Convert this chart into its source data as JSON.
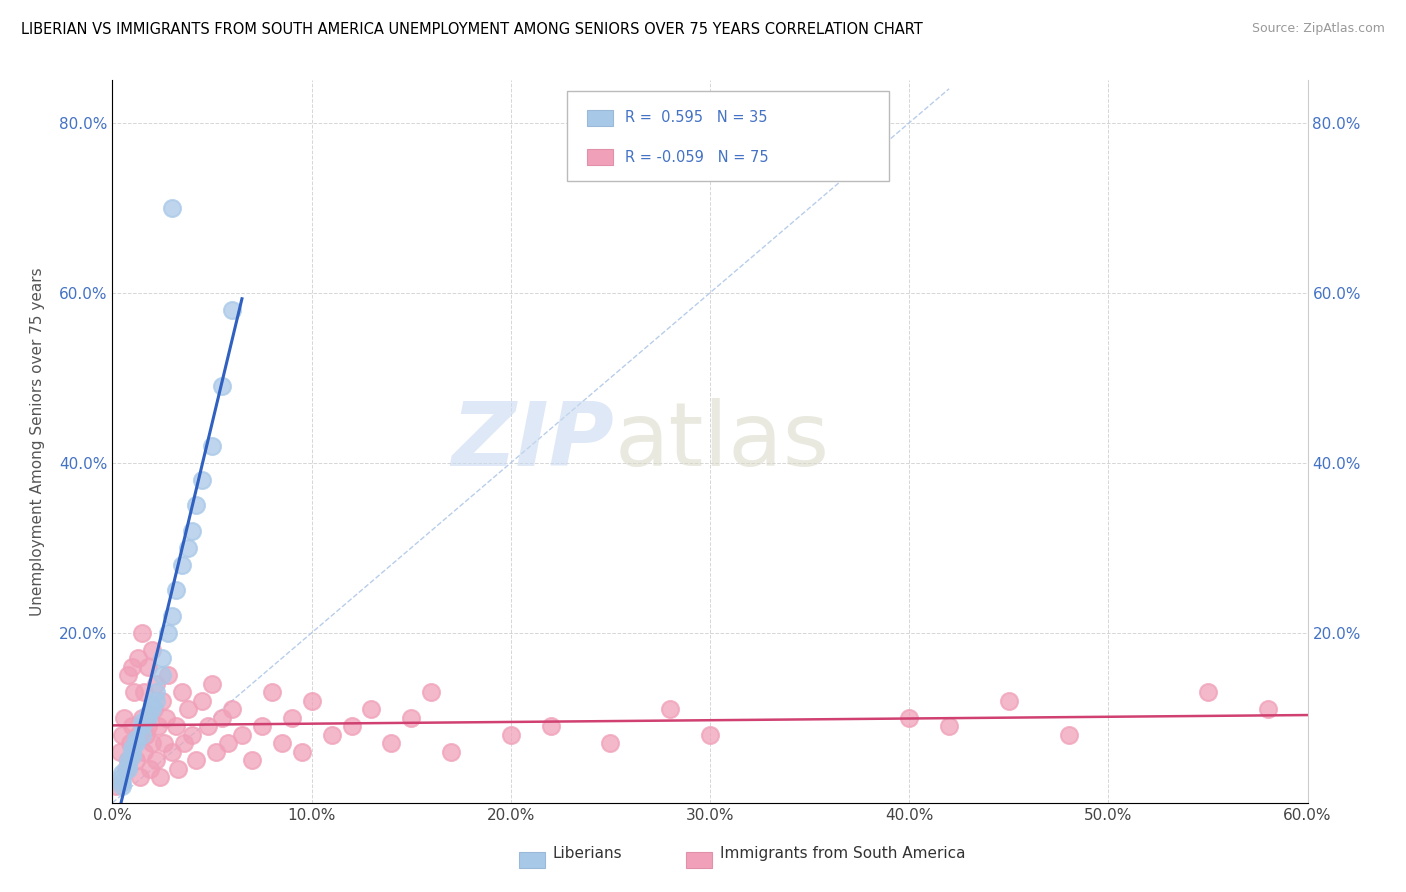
{
  "title": "LIBERIAN VS IMMIGRANTS FROM SOUTH AMERICA UNEMPLOYMENT AMONG SENIORS OVER 75 YEARS CORRELATION CHART",
  "source": "Source: ZipAtlas.com",
  "ylabel": "Unemployment Among Seniors over 75 years",
  "xlim": [
    0.0,
    0.6
  ],
  "ylim": [
    0.0,
    0.85
  ],
  "x_ticks": [
    0.0,
    0.1,
    0.2,
    0.3,
    0.4,
    0.5,
    0.6
  ],
  "y_ticks": [
    0.0,
    0.2,
    0.4,
    0.6,
    0.8
  ],
  "r_liberian": 0.595,
  "n_liberian": 35,
  "r_sa": -0.059,
  "n_sa": 75,
  "liberian_color": "#a8c8e8",
  "sa_color": "#f0a0b8",
  "liberian_line_color": "#3060c0",
  "sa_line_color": "#d04070",
  "dashed_line_color": "#b0c8e8",
  "legend_label_liberian": "Liberians",
  "legend_label_sa": "Immigrants from South America",
  "lib_x": [
    0.005,
    0.005,
    0.005,
    0.005,
    0.008,
    0.008,
    0.008,
    0.01,
    0.01,
    0.01,
    0.012,
    0.012,
    0.015,
    0.015,
    0.015,
    0.018,
    0.018,
    0.02,
    0.02,
    0.022,
    0.022,
    0.025,
    0.025,
    0.028,
    0.03,
    0.032,
    0.035,
    0.038,
    0.04,
    0.042,
    0.045,
    0.05,
    0.055,
    0.06,
    0.03
  ],
  "lib_y": [
    0.02,
    0.025,
    0.03,
    0.035,
    0.04,
    0.045,
    0.05,
    0.055,
    0.06,
    0.065,
    0.07,
    0.075,
    0.08,
    0.09,
    0.095,
    0.1,
    0.105,
    0.11,
    0.115,
    0.12,
    0.13,
    0.15,
    0.17,
    0.2,
    0.22,
    0.25,
    0.28,
    0.3,
    0.32,
    0.35,
    0.38,
    0.42,
    0.49,
    0.58,
    0.7
  ],
  "sa_x": [
    0.002,
    0.004,
    0.005,
    0.006,
    0.007,
    0.008,
    0.008,
    0.009,
    0.01,
    0.01,
    0.011,
    0.012,
    0.013,
    0.013,
    0.014,
    0.015,
    0.015,
    0.016,
    0.016,
    0.017,
    0.018,
    0.018,
    0.019,
    0.02,
    0.02,
    0.021,
    0.022,
    0.022,
    0.023,
    0.024,
    0.025,
    0.026,
    0.027,
    0.028,
    0.03,
    0.032,
    0.033,
    0.035,
    0.036,
    0.038,
    0.04,
    0.042,
    0.045,
    0.048,
    0.05,
    0.052,
    0.055,
    0.058,
    0.06,
    0.065,
    0.07,
    0.075,
    0.08,
    0.085,
    0.09,
    0.095,
    0.1,
    0.11,
    0.12,
    0.13,
    0.14,
    0.15,
    0.16,
    0.17,
    0.2,
    0.22,
    0.25,
    0.28,
    0.3,
    0.4,
    0.42,
    0.45,
    0.48,
    0.55,
    0.58
  ],
  "sa_y": [
    0.02,
    0.06,
    0.08,
    0.1,
    0.04,
    0.05,
    0.15,
    0.07,
    0.09,
    0.16,
    0.13,
    0.05,
    0.08,
    0.17,
    0.03,
    0.1,
    0.2,
    0.06,
    0.13,
    0.08,
    0.09,
    0.16,
    0.04,
    0.07,
    0.18,
    0.11,
    0.05,
    0.14,
    0.09,
    0.03,
    0.12,
    0.07,
    0.1,
    0.15,
    0.06,
    0.09,
    0.04,
    0.13,
    0.07,
    0.11,
    0.08,
    0.05,
    0.12,
    0.09,
    0.14,
    0.06,
    0.1,
    0.07,
    0.11,
    0.08,
    0.05,
    0.09,
    0.13,
    0.07,
    0.1,
    0.06,
    0.12,
    0.08,
    0.09,
    0.11,
    0.07,
    0.1,
    0.13,
    0.06,
    0.08,
    0.09,
    0.07,
    0.11,
    0.08,
    0.1,
    0.09,
    0.12,
    0.08,
    0.13,
    0.11
  ]
}
